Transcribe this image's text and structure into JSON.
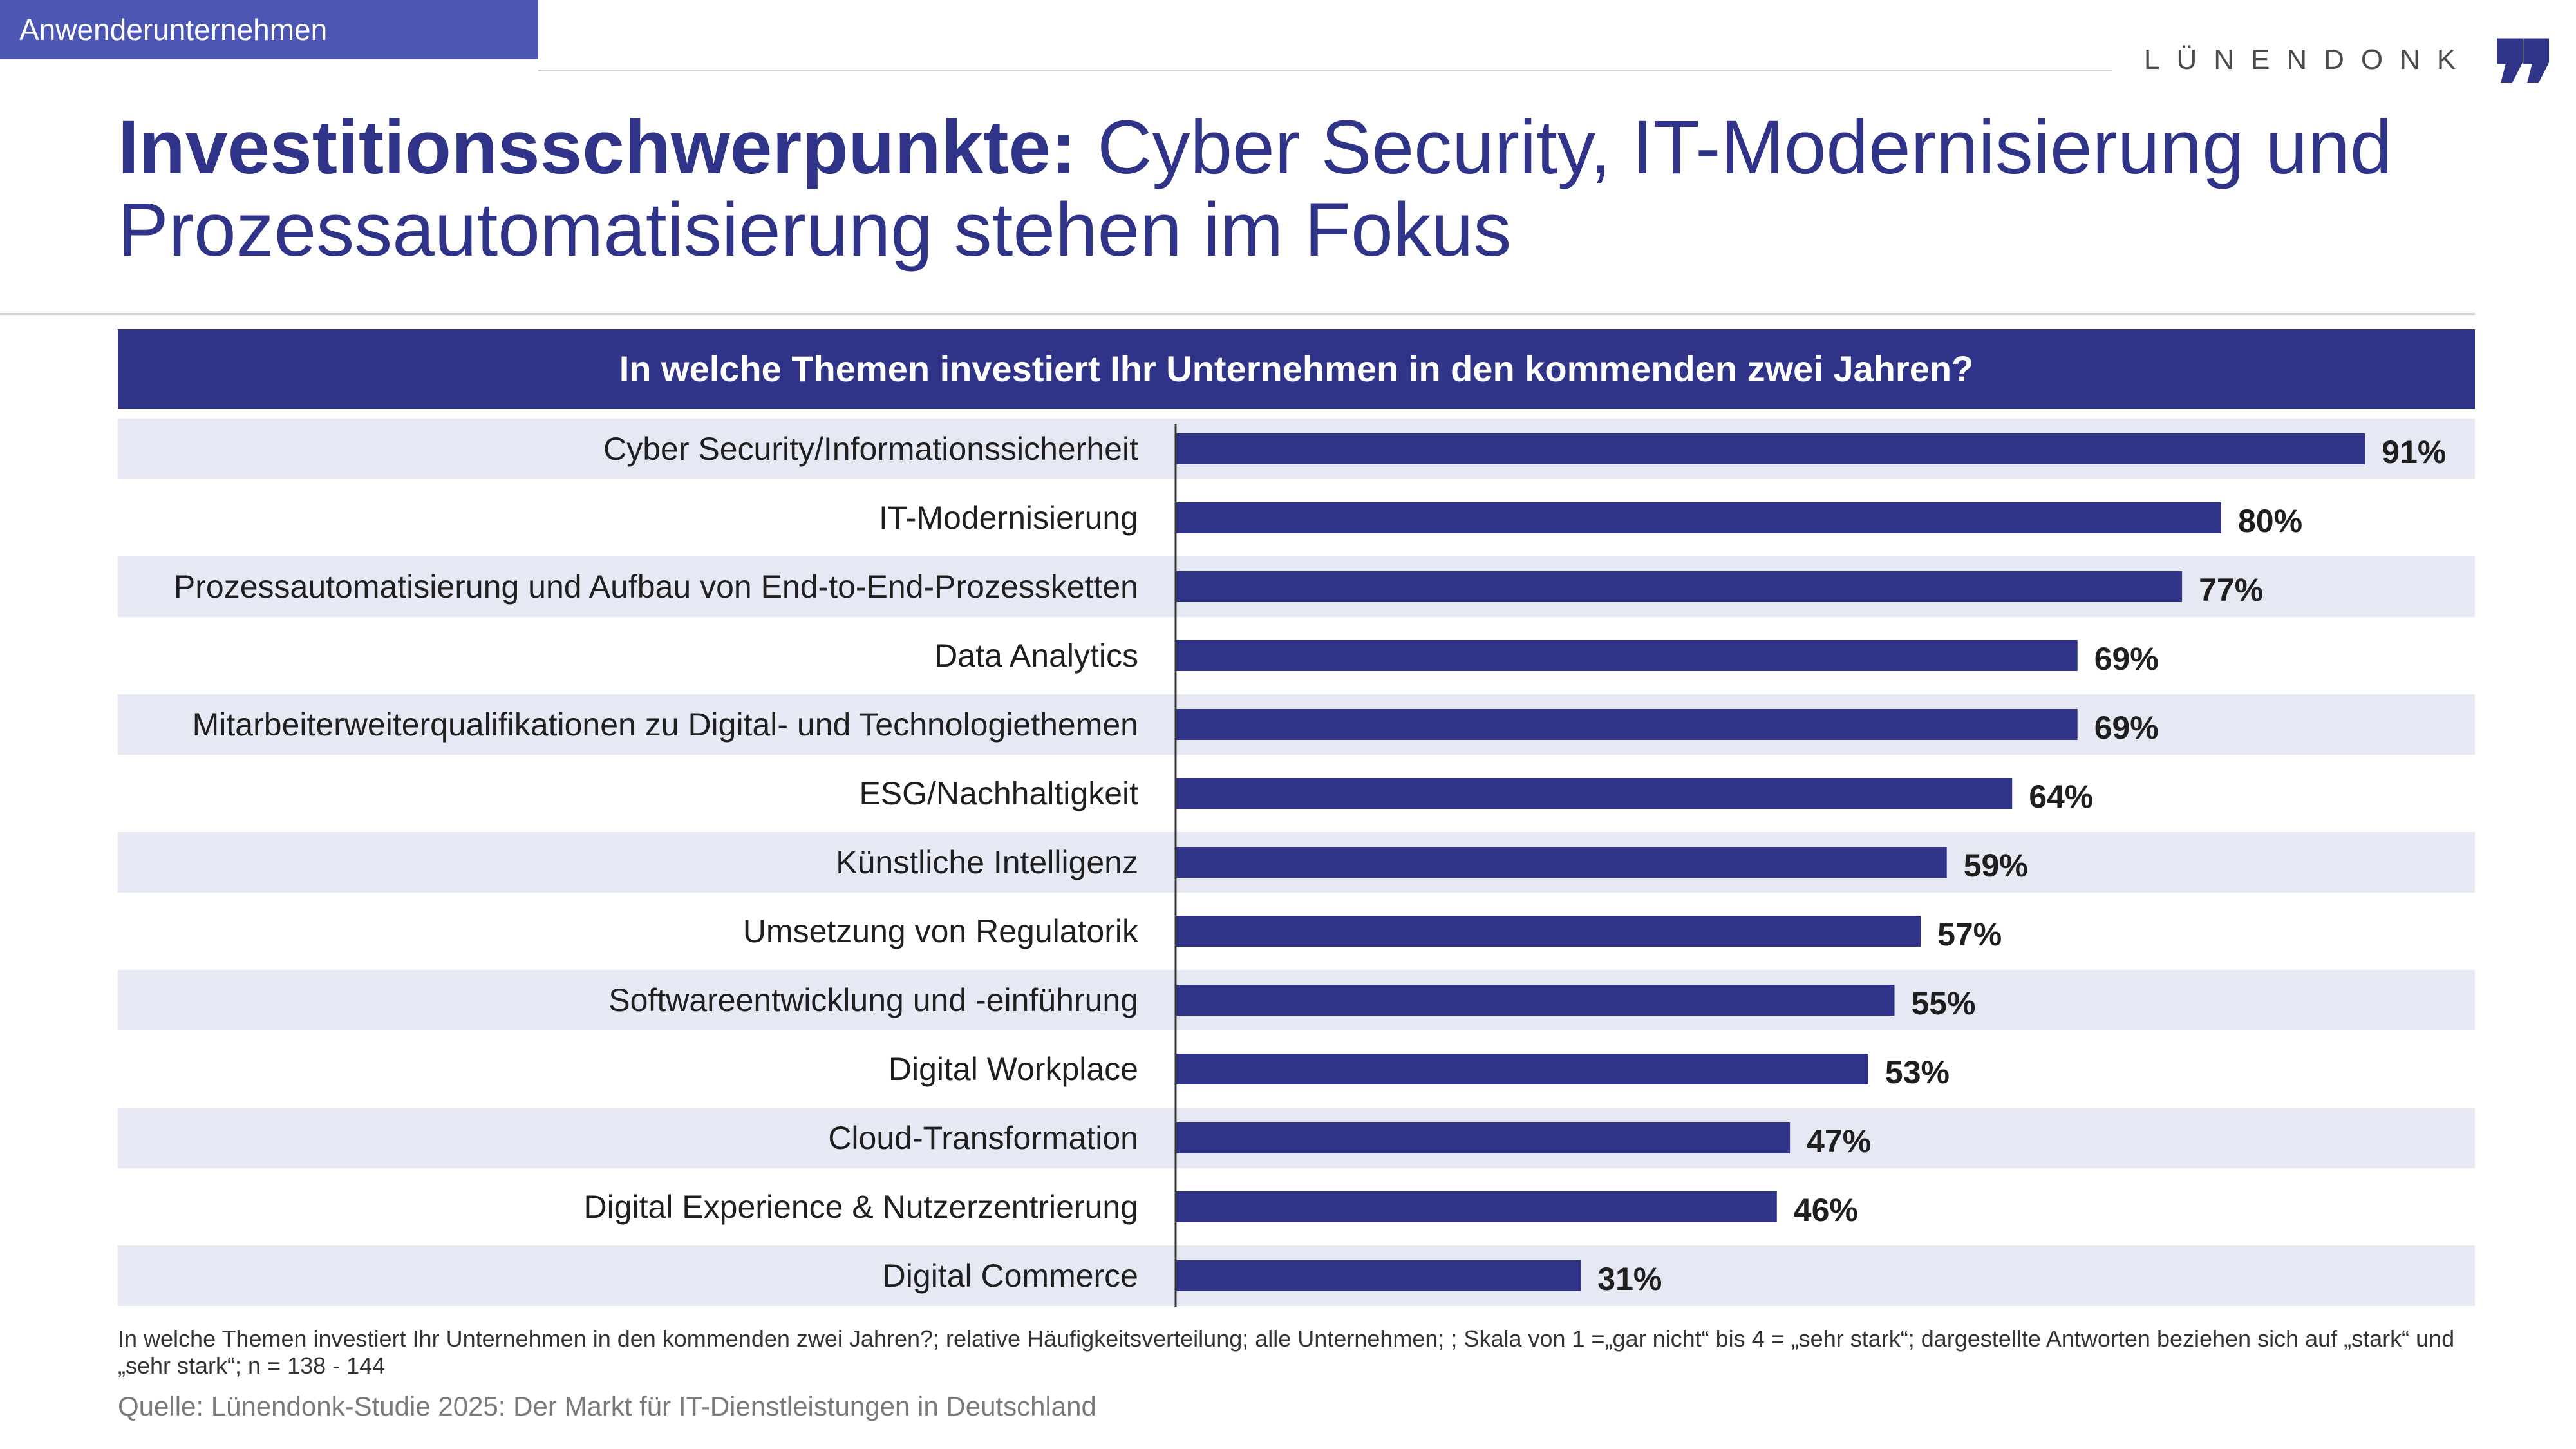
{
  "header": {
    "tag": "Anwenderunternehmen",
    "brand": "LÜNENDONK",
    "brand_mark": "❞",
    "title_bold": "Investitionsschwerpunkte:",
    "title_rest": " Cyber Security, IT-Modernisierung und Prozessautomatisierung stehen im Fokus"
  },
  "question": "In welche Themen investiert Ihr Unternehmen in den kommenden zwei Jahren?",
  "chart_data": {
    "type": "bar",
    "orientation": "horizontal",
    "categories": [
      "Cyber Security/Informationssicherheit",
      "IT-Modernisierung",
      "Prozessautomatisierung und Aufbau von End-to-End-Prozessketten",
      "Data Analytics",
      "Mitarbeiterweiterqualifikationen zu Digital- und Technologiethemen",
      "ESG/Nachhaltigkeit",
      "Künstliche Intelligenz",
      "Umsetzung von Regulatorik",
      "Softwareentwicklung und -einführung",
      "Digital Workplace",
      "Cloud-Transformation",
      "Digital Experience & Nutzerzentrierung",
      "Digital Commerce"
    ],
    "values": [
      91,
      80,
      77,
      69,
      69,
      64,
      59,
      57,
      55,
      53,
      47,
      46,
      31
    ],
    "value_labels": [
      "91%",
      "80%",
      "77%",
      "69%",
      "69%",
      "64%",
      "59%",
      "57%",
      "55%",
      "53%",
      "47%",
      "46%",
      "31%"
    ],
    "xlim": [
      0,
      100
    ],
    "bar_color": "#2f3489",
    "band_color": "#e6e8f3"
  },
  "footnote": "In welche Themen investiert Ihr Unternehmen in den kommenden zwei Jahren?; relative Häufigkeitsverteilung; alle Unternehmen; ; Skala von 1 =„gar nicht“ bis 4 = „sehr stark“; dargestellte Antworten beziehen sich auf „stark“ und „sehr stark“; n = 138 - 144",
  "source": "Quelle: Lünendonk-Studie 2025: Der Markt für IT-Dienstleistungen in Deutschland"
}
